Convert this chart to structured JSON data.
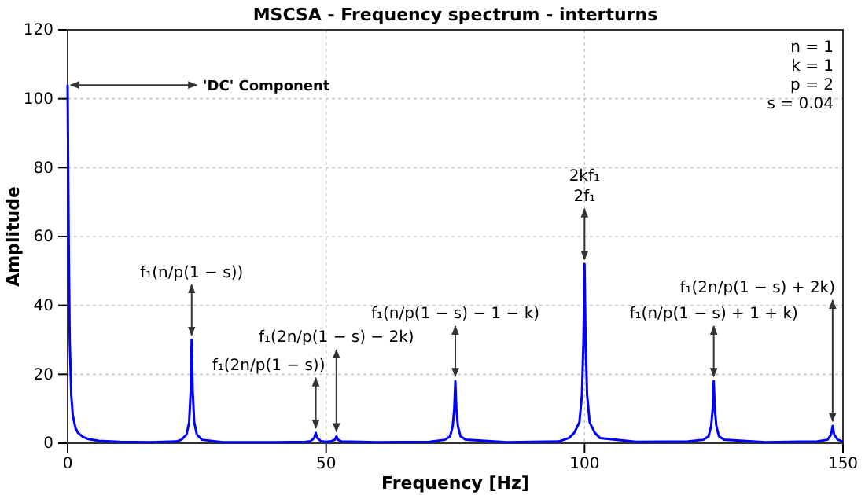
{
  "chart_data": {
    "type": "line",
    "title": "MSCSA - Frequency spectrum - interturns",
    "xlabel": "Frequency [Hz]",
    "ylabel": "Amplitude",
    "xlim": [
      0,
      150
    ],
    "ylim": [
      0,
      120
    ],
    "xticks": [
      0,
      50,
      100,
      150
    ],
    "yticks": [
      0,
      20,
      40,
      60,
      80,
      100,
      120
    ],
    "grid": true,
    "line_style": "solid",
    "marker": "none",
    "x": [
      0,
      0.2,
      0.4,
      0.7,
      1,
      1.5,
      2,
      3,
      4,
      6,
      10,
      16,
      21,
      22,
      23,
      23.5,
      23.8,
      24,
      24.2,
      24.5,
      25,
      26,
      30,
      40,
      46,
      47,
      47.7,
      48,
      48.3,
      49,
      50,
      51,
      51.7,
      52,
      52.3,
      53,
      60,
      70,
      73,
      74,
      74.5,
      74.8,
      75,
      75.2,
      75.5,
      76,
      77,
      85,
      95,
      97,
      98,
      99,
      99.5,
      99.8,
      100,
      100.2,
      100.5,
      101,
      102,
      103,
      110,
      120,
      123,
      124,
      124.5,
      124.8,
      125,
      125.2,
      125.5,
      126,
      127,
      135,
      145,
      147,
      147.7,
      148,
      148.3,
      149,
      150
    ],
    "series": [
      {
        "color": "#0000ff",
        "values": [
          104,
          60,
          30,
          14,
          8,
          4.5,
          3,
          1.8,
          1.2,
          0.7,
          0.4,
          0.3,
          0.5,
          1,
          2.5,
          6,
          15,
          30,
          15,
          6,
          2.5,
          1,
          0.3,
          0.3,
          0.4,
          0.6,
          1.5,
          3,
          1.5,
          0.6,
          0.4,
          0.6,
          1,
          2,
          1,
          0.5,
          0.3,
          0.4,
          1,
          2,
          5,
          10,
          18,
          10,
          5,
          2,
          1,
          0.3,
          0.5,
          1.5,
          3,
          6,
          14,
          30,
          52,
          30,
          14,
          6,
          3,
          1.5,
          0.4,
          0.5,
          1,
          2,
          5,
          10,
          18,
          10,
          5,
          2,
          1,
          0.3,
          0.5,
          1,
          2.5,
          5,
          2.5,
          1,
          0.5
        ]
      }
    ],
    "annotations": [
      {
        "text": "'DC' Component",
        "x": 0,
        "y": 104
      },
      {
        "text": "f₁(n/p(1 − s))",
        "x": 24,
        "y": 30
      },
      {
        "text": "f₁(2n/p(1 − s))",
        "x": 48,
        "y": 3
      },
      {
        "text": "f₁(2n/p(1 − s) − 2k)",
        "x": 52,
        "y": 2
      },
      {
        "text": "f₁(n/p(1 − s) − 1 − k)",
        "x": 75,
        "y": 18
      },
      {
        "text": "2kf₁\n2f₁",
        "x": 100,
        "y": 52
      },
      {
        "text": "f₁(n/p(1 − s) + 1 + k)",
        "x": 125,
        "y": 18
      },
      {
        "text": "f₁(2n/p(1 − s) + 2k)",
        "x": 148,
        "y": 5
      },
      "n = 1\nk = 1\np = 2\ns = 0.04"
    ]
  }
}
